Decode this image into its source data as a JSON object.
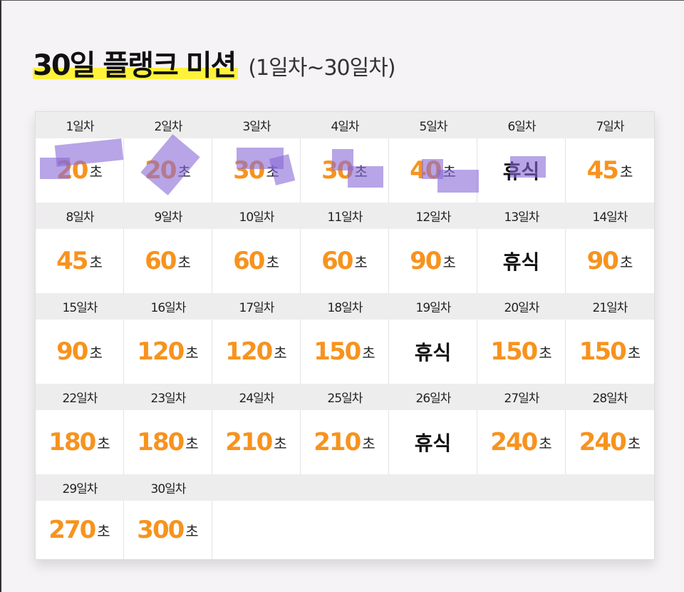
{
  "header": {
    "title": "30일 플랭크 미션",
    "subtitle": "(1일차~30일차)"
  },
  "unit_label": "초",
  "rest_label": "휴식",
  "colors": {
    "accent": "#f7931e",
    "highlight": "#fff23a",
    "overlay": "#8769d7"
  },
  "days": [
    {
      "label": "1일차",
      "seconds": "20"
    },
    {
      "label": "2일차",
      "seconds": "20"
    },
    {
      "label": "3일차",
      "seconds": "30"
    },
    {
      "label": "4일차",
      "seconds": "30"
    },
    {
      "label": "5일차",
      "seconds": "40"
    },
    {
      "label": "6일차",
      "rest": true
    },
    {
      "label": "7일차",
      "seconds": "45"
    },
    {
      "label": "8일차",
      "seconds": "45"
    },
    {
      "label": "9일차",
      "seconds": "60"
    },
    {
      "label": "10일차",
      "seconds": "60"
    },
    {
      "label": "11일차",
      "seconds": "60"
    },
    {
      "label": "12일차",
      "seconds": "90"
    },
    {
      "label": "13일차",
      "rest": true
    },
    {
      "label": "14일차",
      "seconds": "90"
    },
    {
      "label": "15일차",
      "seconds": "90"
    },
    {
      "label": "16일차",
      "seconds": "120"
    },
    {
      "label": "17일차",
      "seconds": "120"
    },
    {
      "label": "18일차",
      "seconds": "150"
    },
    {
      "label": "19일차",
      "rest": true
    },
    {
      "label": "20일차",
      "seconds": "150"
    },
    {
      "label": "21일차",
      "seconds": "150"
    },
    {
      "label": "22일차",
      "seconds": "180"
    },
    {
      "label": "23일차",
      "seconds": "180"
    },
    {
      "label": "24일차",
      "seconds": "210"
    },
    {
      "label": "25일차",
      "seconds": "210"
    },
    {
      "label": "26일차",
      "rest": true
    },
    {
      "label": "27일차",
      "seconds": "240"
    },
    {
      "label": "28일차",
      "seconds": "240"
    },
    {
      "label": "29일차",
      "seconds": "270"
    },
    {
      "label": "30일차",
      "seconds": "300"
    }
  ]
}
